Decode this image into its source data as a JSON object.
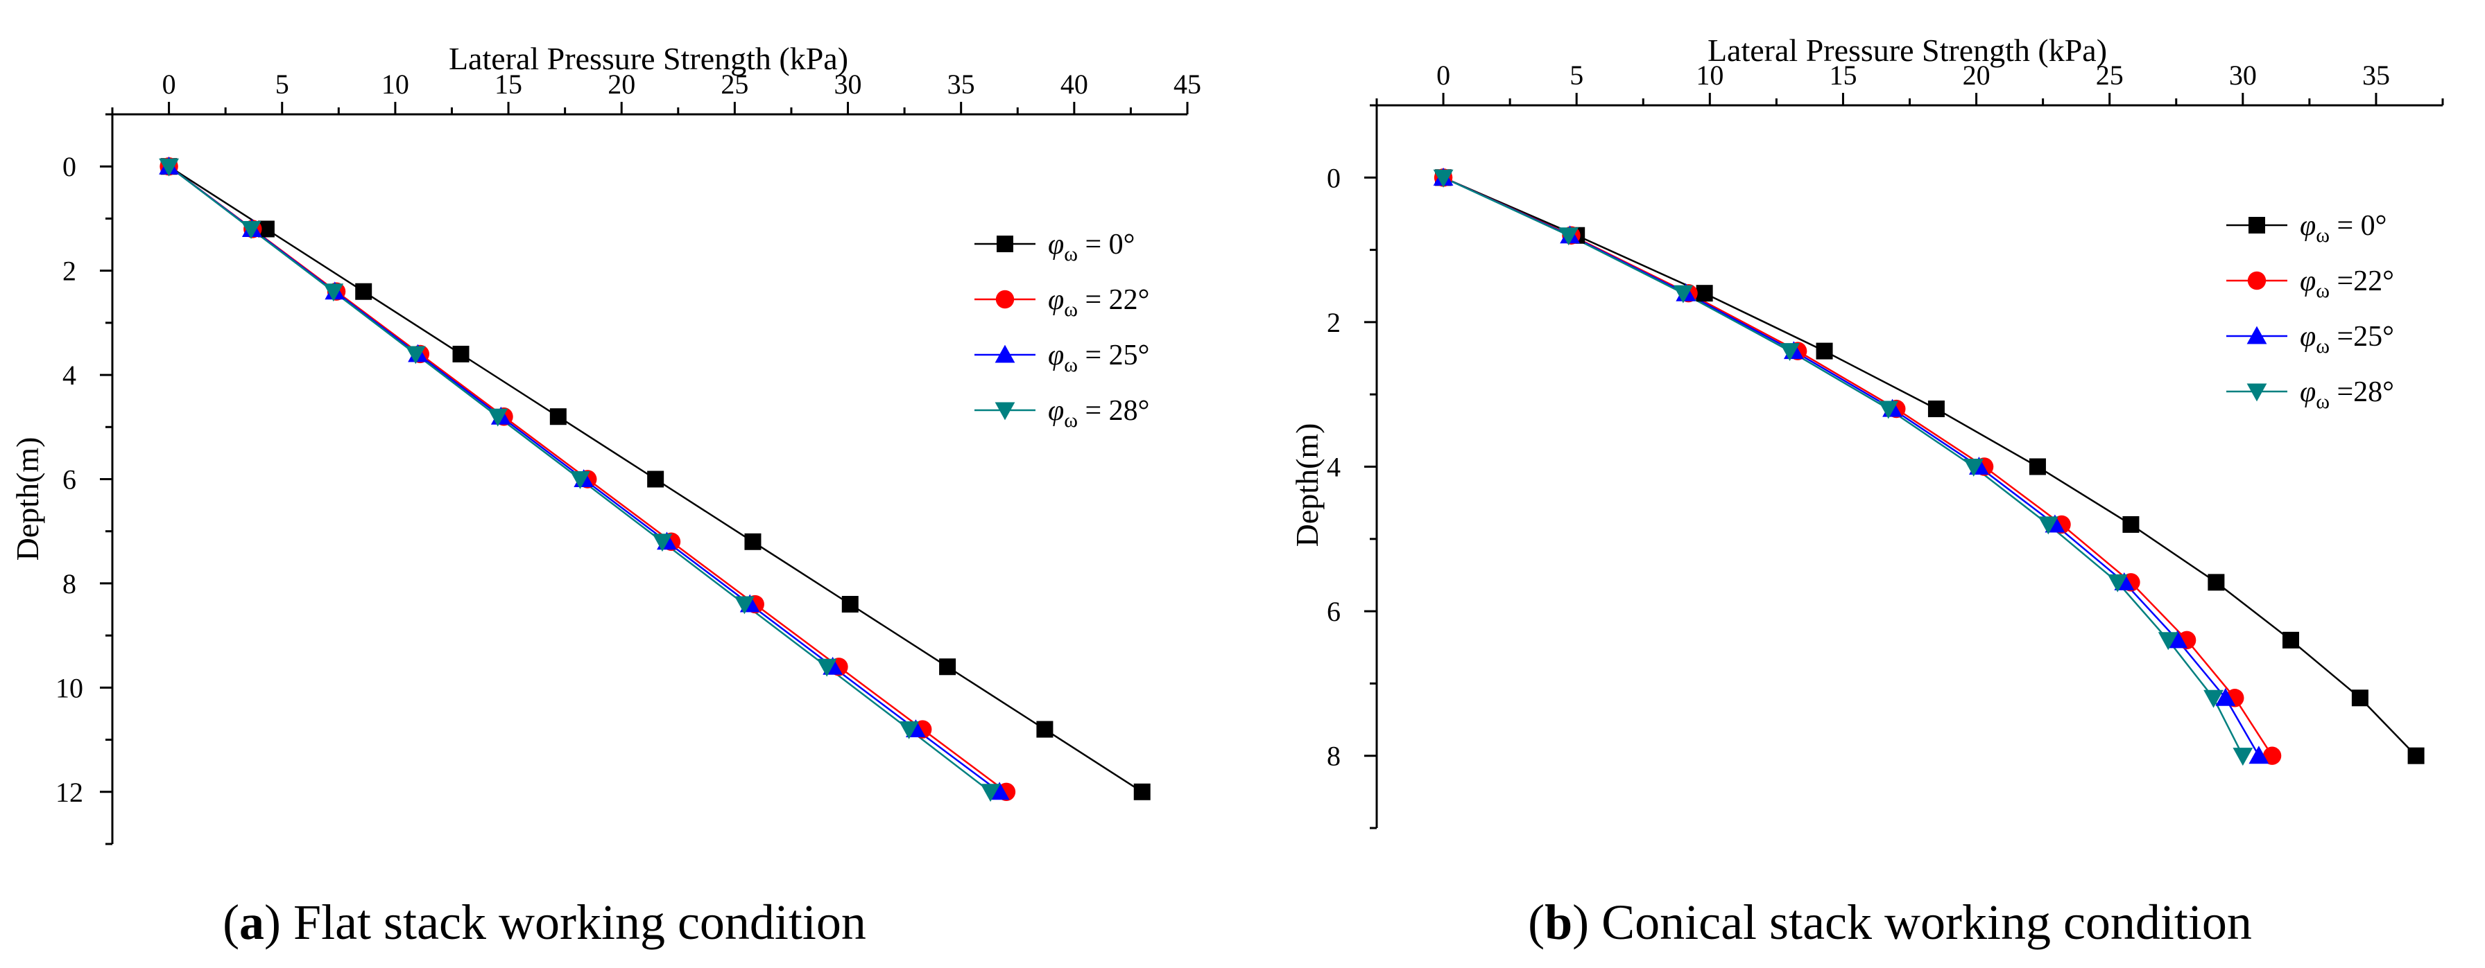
{
  "chart_data": [
    {
      "type": "line",
      "panel": "a",
      "caption_label": "a",
      "caption_text": " Flat stack working condition",
      "xlabel": "Lateral Pressure Strength (kPa)",
      "ylabel": "Depth(m)",
      "xlim": [
        -2.5,
        45
      ],
      "ylim": [
        -1,
        13
      ],
      "xticks": [
        0,
        5,
        10,
        15,
        20,
        25,
        30,
        35,
        40,
        45
      ],
      "yticks": [
        0,
        2,
        4,
        6,
        8,
        10,
        12
      ],
      "xtick_labels": [
        "0",
        "5",
        "10",
        "15",
        "20",
        "25",
        "30",
        "35",
        "40",
        "45"
      ],
      "ytick_labels": [
        "0",
        "2",
        "4",
        "6",
        "8",
        "10",
        "12"
      ],
      "legend_position": "top-right",
      "y": [
        0,
        1.2,
        2.4,
        3.6,
        4.8,
        6.0,
        7.2,
        8.4,
        9.6,
        10.8,
        12.0
      ],
      "series": [
        {
          "name": "φω = 0°",
          "label_main": "φ",
          "label_sub": "ω",
          "label_rest": " = 0°",
          "color": "#000000",
          "marker": "square",
          "x": [
            0,
            4.3,
            8.6,
            12.9,
            17.2,
            21.5,
            25.8,
            30.1,
            34.4,
            38.7,
            43.0
          ]
        },
        {
          "name": "φω = 22°",
          "label_main": "φ",
          "label_sub": "ω",
          "label_rest": " = 22°",
          "color": "#ff0000",
          "marker": "circle",
          "x": [
            0,
            3.7,
            7.4,
            11.1,
            14.8,
            18.5,
            22.2,
            25.9,
            29.6,
            33.3,
            37.0
          ]
        },
        {
          "name": "φω = 25°",
          "label_main": "φ",
          "label_sub": "ω",
          "label_rest": " = 25°",
          "color": "#0000ff",
          "marker": "triangle-up",
          "x": [
            0,
            3.67,
            7.33,
            11.0,
            14.67,
            18.33,
            22.0,
            25.67,
            29.33,
            33.0,
            36.7
          ]
        },
        {
          "name": "φω = 28°",
          "label_main": "φ",
          "label_sub": "ω",
          "label_rest": " = 28°",
          "color": "#008080",
          "marker": "triangle-down",
          "x": [
            0,
            3.63,
            7.27,
            10.9,
            14.53,
            18.17,
            21.8,
            25.43,
            29.07,
            32.7,
            36.3
          ]
        }
      ]
    },
    {
      "type": "line",
      "panel": "b",
      "caption_label": "b",
      "caption_text": " Conical stack working condition",
      "xlabel": "Lateral Pressure Strength (kPa)",
      "ylabel": "Depth(m)",
      "xlim": [
        -2.5,
        37.5
      ],
      "ylim": [
        -1,
        9
      ],
      "xticks": [
        0,
        5,
        10,
        15,
        20,
        25,
        30,
        35
      ],
      "yticks": [
        0,
        2,
        4,
        6,
        8
      ],
      "xtick_labels": [
        "0",
        "5",
        "10",
        "15",
        "20",
        "25",
        "30",
        "35"
      ],
      "ytick_labels": [
        "0",
        "2",
        "4",
        "6",
        "8"
      ],
      "legend_position": "top-right",
      "y": [
        0,
        0.8,
        1.6,
        2.4,
        3.2,
        4.0,
        4.8,
        5.6,
        6.4,
        7.2,
        8.0
      ],
      "series": [
        {
          "name": "φω = 0°",
          "label_main": "φ",
          "label_sub": "ω",
          "label_rest": " = 0°",
          "color": "#000000",
          "marker": "square",
          "x": [
            0,
            5.0,
            9.8,
            14.3,
            18.5,
            22.3,
            25.8,
            29.0,
            31.8,
            34.4,
            36.5
          ]
        },
        {
          "name": "φω = 22°",
          "label_main": "φ",
          "label_sub": "ω",
          "label_rest": " =22°",
          "color": "#ff0000",
          "marker": "circle",
          "x": [
            0,
            4.8,
            9.2,
            13.3,
            17.0,
            20.3,
            23.2,
            25.8,
            27.9,
            29.7,
            31.1
          ]
        },
        {
          "name": "φω = 25°",
          "label_main": "φ",
          "label_sub": "ω",
          "label_rest": " =25°",
          "color": "#0000ff",
          "marker": "triangle-up",
          "x": [
            0,
            4.75,
            9.1,
            13.15,
            16.85,
            20.1,
            22.95,
            25.55,
            27.55,
            29.35,
            30.6
          ]
        },
        {
          "name": "φω = 28°",
          "label_main": "φ",
          "label_sub": "ω",
          "label_rest": " =28°",
          "color": "#008080",
          "marker": "triangle-down",
          "x": [
            0,
            4.7,
            9.0,
            13.0,
            16.7,
            19.9,
            22.7,
            25.3,
            27.2,
            28.9,
            30.0
          ]
        }
      ]
    }
  ]
}
